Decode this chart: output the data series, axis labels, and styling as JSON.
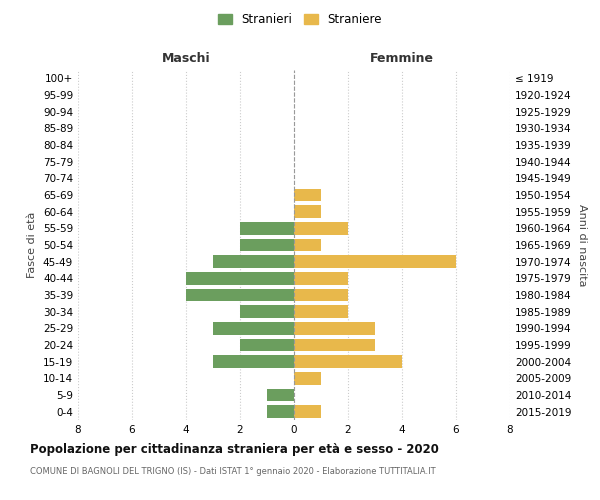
{
  "age_groups": [
    "0-4",
    "5-9",
    "10-14",
    "15-19",
    "20-24",
    "25-29",
    "30-34",
    "35-39",
    "40-44",
    "45-49",
    "50-54",
    "55-59",
    "60-64",
    "65-69",
    "70-74",
    "75-79",
    "80-84",
    "85-89",
    "90-94",
    "95-99",
    "100+"
  ],
  "birth_years": [
    "2015-2019",
    "2010-2014",
    "2005-2009",
    "2000-2004",
    "1995-1999",
    "1990-1994",
    "1985-1989",
    "1980-1984",
    "1975-1979",
    "1970-1974",
    "1965-1969",
    "1960-1964",
    "1955-1959",
    "1950-1954",
    "1945-1949",
    "1940-1944",
    "1935-1939",
    "1930-1934",
    "1925-1929",
    "1920-1924",
    "≤ 1919"
  ],
  "males": [
    1,
    1,
    0,
    3,
    2,
    3,
    2,
    4,
    4,
    3,
    2,
    2,
    0,
    0,
    0,
    0,
    0,
    0,
    0,
    0,
    0
  ],
  "females": [
    1,
    0,
    1,
    4,
    3,
    3,
    2,
    2,
    2,
    6,
    1,
    2,
    1,
    1,
    0,
    0,
    0,
    0,
    0,
    0,
    0
  ],
  "male_color": "#6b9e5e",
  "female_color": "#e8b84b",
  "title": "Popolazione per cittadinanza straniera per età e sesso - 2020",
  "subtitle": "COMUNE DI BAGNOLI DEL TRIGNO (IS) - Dati ISTAT 1° gennaio 2020 - Elaborazione TUTTITALIA.IT",
  "xlabel_left": "Maschi",
  "xlabel_right": "Femmine",
  "ylabel_left": "Fasce di età",
  "ylabel_right": "Anni di nascita",
  "legend_male": "Stranieri",
  "legend_female": "Straniere",
  "xlim": 8,
  "background_color": "#ffffff",
  "grid_color": "#cccccc"
}
